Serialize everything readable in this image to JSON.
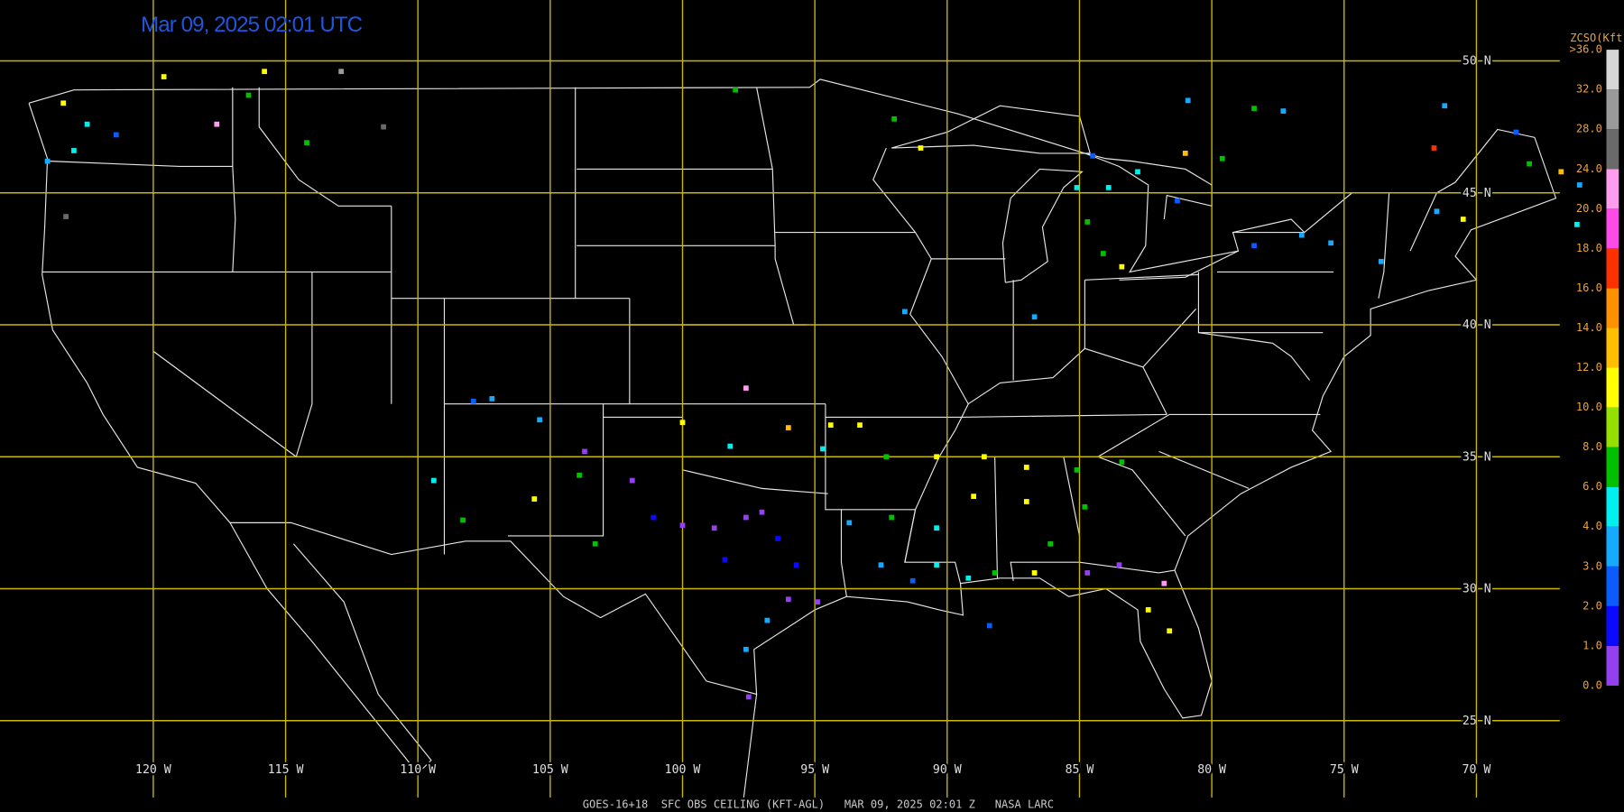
{
  "title": "Mar 09, 2025 02:01 UTC",
  "footer": "GOES-16+18  SFC OBS CEILING (KFT-AGL)   MAR 09, 2025 02:01 Z   NASA LARC",
  "grid": {
    "latitudes": [
      {
        "value": 50,
        "label": "50 N"
      },
      {
        "value": 45,
        "label": "45 N"
      },
      {
        "value": 40,
        "label": "40 N"
      },
      {
        "value": 35,
        "label": "35 N"
      },
      {
        "value": 30,
        "label": "30 N"
      },
      {
        "value": 25,
        "label": "25 N"
      }
    ],
    "longitudes": [
      {
        "value": -120,
        "label": "120 W"
      },
      {
        "value": -115,
        "label": "115 W"
      },
      {
        "value": -110,
        "label": "110 W"
      },
      {
        "value": -105,
        "label": "105 W"
      },
      {
        "value": -100,
        "label": "100 W"
      },
      {
        "value": -95,
        "label": "95 W"
      },
      {
        "value": -90,
        "label": "90 W"
      },
      {
        "value": -85,
        "label": "85 W"
      },
      {
        "value": -80,
        "label": "80 W"
      },
      {
        "value": -75,
        "label": "75 W"
      },
      {
        "value": -70,
        "label": "70 W"
      }
    ]
  },
  "legend": {
    "title": "ZCSO(Kft)",
    "ticks": [
      {
        "value": 0,
        "label": "0.0"
      },
      {
        "value": 1,
        "label": "1.0"
      },
      {
        "value": 2,
        "label": "2.0"
      },
      {
        "value": 3,
        "label": "3.0"
      },
      {
        "value": 4,
        "label": "4.0"
      },
      {
        "value": 6,
        "label": "6.0"
      },
      {
        "value": 8,
        "label": "8.0"
      },
      {
        "value": 10,
        "label": "10.0"
      },
      {
        "value": 12,
        "label": "12.0"
      },
      {
        "value": 14,
        "label": "14.0"
      },
      {
        "value": 16,
        "label": "16.0"
      },
      {
        "value": 18,
        "label": "18.0"
      },
      {
        "value": 20,
        "label": "20.0"
      },
      {
        "value": 24,
        "label": "24.0"
      },
      {
        "value": 28,
        "label": "28.0"
      },
      {
        "value": 32,
        "label": "32.0"
      },
      {
        "value": 36,
        "label": ">36.0"
      }
    ],
    "colors": [
      "#9440f0",
      "#0a0aff",
      "#0a5cff",
      "#14aaff",
      "#00f0f0",
      "#00c000",
      "#94e000",
      "#ffff00",
      "#ffbe00",
      "#ff9000",
      "#ff3000",
      "#ff4ae8",
      "#ff9cf0",
      "#6a6a6a",
      "#9a9a9a",
      "#d6d6d6"
    ]
  },
  "observations": [
    {
      "lon": -119.6,
      "lat": 49.4,
      "ceiling": 11
    },
    {
      "lon": -115.8,
      "lat": 49.6,
      "ceiling": 11
    },
    {
      "lon": -112.9,
      "lat": 49.6,
      "ceiling": 30
    },
    {
      "lon": -111.3,
      "lat": 47.5,
      "ceiling": 26
    },
    {
      "lon": -117.6,
      "lat": 47.6,
      "ceiling": 22
    },
    {
      "lon": -123.3,
      "lat": 44.1,
      "ceiling": 26
    },
    {
      "lon": -116.4,
      "lat": 48.7,
      "ceiling": 7
    },
    {
      "lon": -114.2,
      "lat": 46.9,
      "ceiling": 7
    },
    {
      "lon": -121.4,
      "lat": 47.2,
      "ceiling": 2.5
    },
    {
      "lon": -122.5,
      "lat": 47.6,
      "ceiling": 5
    },
    {
      "lon": -123.0,
      "lat": 46.6,
      "ceiling": 5
    },
    {
      "lon": -124.0,
      "lat": 46.2,
      "ceiling": 3.5
    },
    {
      "lon": -98.0,
      "lat": 48.9,
      "ceiling": 7
    },
    {
      "lon": -92.0,
      "lat": 47.8,
      "ceiling": 7
    },
    {
      "lon": -91.0,
      "lat": 46.7,
      "ceiling": 11
    },
    {
      "lon": -80.9,
      "lat": 48.5,
      "ceiling": 3.5
    },
    {
      "lon": -78.4,
      "lat": 48.2,
      "ceiling": 7
    },
    {
      "lon": -77.3,
      "lat": 48.1,
      "ceiling": 3.5
    },
    {
      "lon": -71.2,
      "lat": 48.3,
      "ceiling": 3.5
    },
    {
      "lon": -81.0,
      "lat": 46.5,
      "ceiling": 13
    },
    {
      "lon": -79.6,
      "lat": 46.3,
      "ceiling": 7
    },
    {
      "lon": -71.6,
      "lat": 46.7,
      "ceiling": 17
    },
    {
      "lon": -68.5,
      "lat": 47.3,
      "ceiling": 2.5
    },
    {
      "lon": -68.0,
      "lat": 46.1,
      "ceiling": 7
    },
    {
      "lon": -66.8,
      "lat": 45.8,
      "ceiling": 13
    },
    {
      "lon": -81.3,
      "lat": 44.7,
      "ceiling": 2.5
    },
    {
      "lon": -84.5,
      "lat": 46.4,
      "ceiling": 2.5
    },
    {
      "lon": -84.7,
      "lat": 43.9,
      "ceiling": 7
    },
    {
      "lon": -84.1,
      "lat": 42.7,
      "ceiling": 7
    },
    {
      "lon": -83.4,
      "lat": 42.2,
      "ceiling": 11
    },
    {
      "lon": -85.1,
      "lat": 45.2,
      "ceiling": 5
    },
    {
      "lon": -86.7,
      "lat": 40.3,
      "ceiling": 3.5
    },
    {
      "lon": -91.6,
      "lat": 40.5,
      "ceiling": 3.5
    },
    {
      "lon": -76.6,
      "lat": 43.4,
      "ceiling": 3.5
    },
    {
      "lon": -78.4,
      "lat": 43.0,
      "ceiling": 2.5
    },
    {
      "lon": -73.6,
      "lat": 42.4,
      "ceiling": 3.5
    },
    {
      "lon": -71.5,
      "lat": 44.3,
      "ceiling": 3.5
    },
    {
      "lon": -70.5,
      "lat": 44.0,
      "ceiling": 11
    },
    {
      "lon": -97.6,
      "lat": 37.6,
      "ceiling": 22
    },
    {
      "lon": -107.2,
      "lat": 37.2,
      "ceiling": 3.5
    },
    {
      "lon": -107.9,
      "lat": 37.1,
      "ceiling": 2.5
    },
    {
      "lon": -105.4,
      "lat": 36.4,
      "ceiling": 3.5
    },
    {
      "lon": -109.4,
      "lat": 34.1,
      "ceiling": 5
    },
    {
      "lon": -108.3,
      "lat": 32.6,
      "ceiling": 7
    },
    {
      "lon": -105.6,
      "lat": 33.4,
      "ceiling": 11
    },
    {
      "lon": -103.3,
      "lat": 31.7,
      "ceiling": 7
    },
    {
      "lon": -103.9,
      "lat": 34.3,
      "ceiling": 7
    },
    {
      "lon": -103.7,
      "lat": 35.2,
      "ceiling": 0.5
    },
    {
      "lon": -100.0,
      "lat": 36.3,
      "ceiling": 11
    },
    {
      "lon": -98.2,
      "lat": 35.4,
      "ceiling": 5
    },
    {
      "lon": -96.0,
      "lat": 36.1,
      "ceiling": 13
    },
    {
      "lon": -94.4,
      "lat": 36.2,
      "ceiling": 11
    },
    {
      "lon": -93.3,
      "lat": 36.2,
      "ceiling": 11
    },
    {
      "lon": -94.7,
      "lat": 35.3,
      "ceiling": 5
    },
    {
      "lon": -92.3,
      "lat": 35.0,
      "ceiling": 7
    },
    {
      "lon": -90.4,
      "lat": 35.0,
      "ceiling": 11
    },
    {
      "lon": -88.6,
      "lat": 35.0,
      "ceiling": 11
    },
    {
      "lon": -87.0,
      "lat": 34.6,
      "ceiling": 11
    },
    {
      "lon": -85.1,
      "lat": 34.5,
      "ceiling": 7
    },
    {
      "lon": -83.4,
      "lat": 34.8,
      "ceiling": 7
    },
    {
      "lon": -89.0,
      "lat": 33.5,
      "ceiling": 11
    },
    {
      "lon": -87.0,
      "lat": 33.3,
      "ceiling": 11
    },
    {
      "lon": -90.4,
      "lat": 32.3,
      "ceiling": 5
    },
    {
      "lon": -92.1,
      "lat": 32.7,
      "ceiling": 7
    },
    {
      "lon": -93.7,
      "lat": 32.5,
      "ceiling": 3.5
    },
    {
      "lon": -98.8,
      "lat": 32.3,
      "ceiling": 0.5
    },
    {
      "lon": -97.6,
      "lat": 32.7,
      "ceiling": 0.5
    },
    {
      "lon": -97.0,
      "lat": 32.9,
      "ceiling": 0.5
    },
    {
      "lon": -96.4,
      "lat": 31.9,
      "ceiling": 1.5
    },
    {
      "lon": -100.0,
      "lat": 32.4,
      "ceiling": 0.5
    },
    {
      "lon": -101.1,
      "lat": 32.7,
      "ceiling": 1.5
    },
    {
      "lon": -101.9,
      "lat": 34.1,
      "ceiling": 0.5
    },
    {
      "lon": -98.4,
      "lat": 31.1,
      "ceiling": 1.5
    },
    {
      "lon": -95.7,
      "lat": 30.9,
      "ceiling": 1.5
    },
    {
      "lon": -94.9,
      "lat": 29.5,
      "ceiling": 0.5
    },
    {
      "lon": -96.0,
      "lat": 29.6,
      "ceiling": 0.5
    },
    {
      "lon": -96.8,
      "lat": 28.8,
      "ceiling": 3.5
    },
    {
      "lon": -97.6,
      "lat": 27.7,
      "ceiling": 3.5
    },
    {
      "lon": -97.5,
      "lat": 25.9,
      "ceiling": 0.5
    },
    {
      "lon": -92.5,
      "lat": 30.9,
      "ceiling": 3.5
    },
    {
      "lon": -91.3,
      "lat": 30.3,
      "ceiling": 2.5
    },
    {
      "lon": -90.4,
      "lat": 30.9,
      "ceiling": 5
    },
    {
      "lon": -89.2,
      "lat": 30.4,
      "ceiling": 5
    },
    {
      "lon": -88.2,
      "lat": 30.6,
      "ceiling": 7
    },
    {
      "lon": -86.7,
      "lat": 30.6,
      "ceiling": 11
    },
    {
      "lon": -84.7,
      "lat": 30.6,
      "ceiling": 0.5
    },
    {
      "lon": -83.5,
      "lat": 30.9,
      "ceiling": 0.5
    },
    {
      "lon": -82.4,
      "lat": 29.2,
      "ceiling": 11
    },
    {
      "lon": -81.6,
      "lat": 28.4,
      "ceiling": 11
    },
    {
      "lon": -88.4,
      "lat": 28.6,
      "ceiling": 2.5
    },
    {
      "lon": -81.8,
      "lat": 30.2,
      "ceiling": 22
    },
    {
      "lon": -86.1,
      "lat": 31.7,
      "ceiling": 7
    },
    {
      "lon": -84.8,
      "lat": 33.1,
      "ceiling": 7
    },
    {
      "lon": -123.4,
      "lat": 48.4,
      "ceiling": 11
    },
    {
      "lon": -66.1,
      "lat": 45.3,
      "ceiling": 3.5
    },
    {
      "lon": -66.2,
      "lat": 43.8,
      "ceiling": 5
    },
    {
      "lon": -75.5,
      "lat": 43.1,
      "ceiling": 3.5
    },
    {
      "lon": -83.9,
      "lat": 45.2,
      "ceiling": 5
    },
    {
      "lon": -82.8,
      "lat": 45.8,
      "ceiling": 5
    }
  ]
}
